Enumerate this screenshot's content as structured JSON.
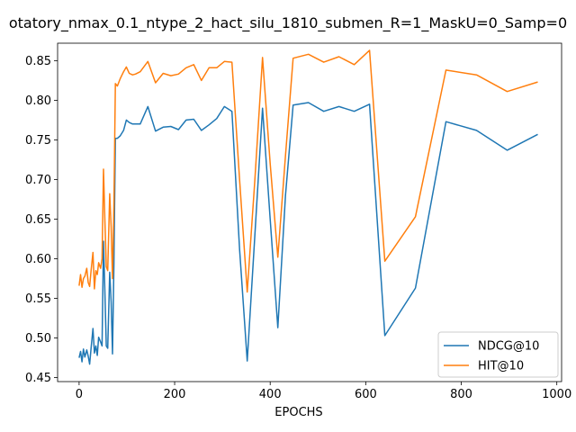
{
  "chart_data": {
    "type": "line",
    "title": "otatory_nmax_0.1_ntype_2_hact_silu_1810_submen_R=1_MaskU=0_Samp=0",
    "xlabel": "EPOCHS",
    "ylabel": "",
    "xlim": [
      -45,
      1010
    ],
    "ylim": [
      0.445,
      0.872
    ],
    "xticks": [
      0,
      200,
      400,
      600,
      800,
      1000
    ],
    "yticks": [
      0.45,
      0.5,
      0.55,
      0.6,
      0.65,
      0.7,
      0.75,
      0.8,
      0.85
    ],
    "ytick_labels": [
      "0.45",
      "0.50",
      "0.55",
      "0.60",
      "0.65",
      "0.70",
      "0.75",
      "0.80",
      "0.85"
    ],
    "grid": false,
    "legend_position": "lower-right",
    "series": [
      {
        "name": "NDCG@10",
        "color": "#1f77b4",
        "x": [
          0,
          3,
          6,
          9,
          12,
          16,
          19,
          22,
          25,
          29,
          32,
          35,
          38,
          41,
          45,
          48,
          51,
          54,
          57,
          60,
          64,
          67,
          70,
          73,
          76,
          80,
          86,
          93,
          99,
          105,
          112,
          118,
          128,
          144,
          160,
          176,
          192,
          208,
          224,
          240,
          256,
          272,
          288,
          304,
          320,
          336,
          352,
          368,
          384,
          400,
          416,
          432,
          448,
          480,
          512,
          544,
          576,
          608,
          640,
          704,
          768,
          832,
          896,
          960
        ],
        "y": [
          0.475,
          0.483,
          0.47,
          0.486,
          0.476,
          0.485,
          0.477,
          0.467,
          0.487,
          0.512,
          0.481,
          0.49,
          0.478,
          0.501,
          0.495,
          0.49,
          0.622,
          0.56,
          0.49,
          0.487,
          0.583,
          0.545,
          0.48,
          0.595,
          0.752,
          0.752,
          0.755,
          0.762,
          0.775,
          0.772,
          0.77,
          0.77,
          0.77,
          0.792,
          0.761,
          0.766,
          0.767,
          0.763,
          0.775,
          0.776,
          0.762,
          0.769,
          0.777,
          0.792,
          0.786,
          0.612,
          0.471,
          0.63,
          0.79,
          0.65,
          0.513,
          0.68,
          0.794,
          0.797,
          0.786,
          0.792,
          0.786,
          0.795,
          0.503,
          0.563,
          0.773,
          0.762,
          0.737,
          0.757
        ]
      },
      {
        "name": "HIT@10",
        "color": "#ff7f0e",
        "x": [
          0,
          3,
          6,
          9,
          12,
          16,
          19,
          22,
          25,
          29,
          32,
          35,
          38,
          41,
          45,
          48,
          51,
          54,
          57,
          60,
          64,
          67,
          70,
          73,
          76,
          80,
          86,
          93,
          99,
          105,
          112,
          118,
          128,
          144,
          160,
          176,
          192,
          208,
          224,
          240,
          256,
          272,
          288,
          304,
          320,
          336,
          352,
          368,
          384,
          400,
          416,
          432,
          448,
          480,
          512,
          544,
          576,
          608,
          640,
          704,
          768,
          832,
          896,
          960
        ],
        "y": [
          0.566,
          0.58,
          0.564,
          0.575,
          0.578,
          0.588,
          0.57,
          0.565,
          0.585,
          0.608,
          0.562,
          0.585,
          0.58,
          0.595,
          0.588,
          0.6,
          0.713,
          0.65,
          0.59,
          0.585,
          0.682,
          0.64,
          0.575,
          0.67,
          0.821,
          0.818,
          0.827,
          0.836,
          0.842,
          0.834,
          0.832,
          0.833,
          0.836,
          0.849,
          0.822,
          0.834,
          0.831,
          0.833,
          0.841,
          0.845,
          0.825,
          0.841,
          0.841,
          0.849,
          0.848,
          0.7,
          0.558,
          0.7,
          0.854,
          0.72,
          0.602,
          0.73,
          0.853,
          0.858,
          0.848,
          0.855,
          0.845,
          0.863,
          0.597,
          0.653,
          0.838,
          0.832,
          0.811,
          0.823
        ]
      }
    ]
  }
}
